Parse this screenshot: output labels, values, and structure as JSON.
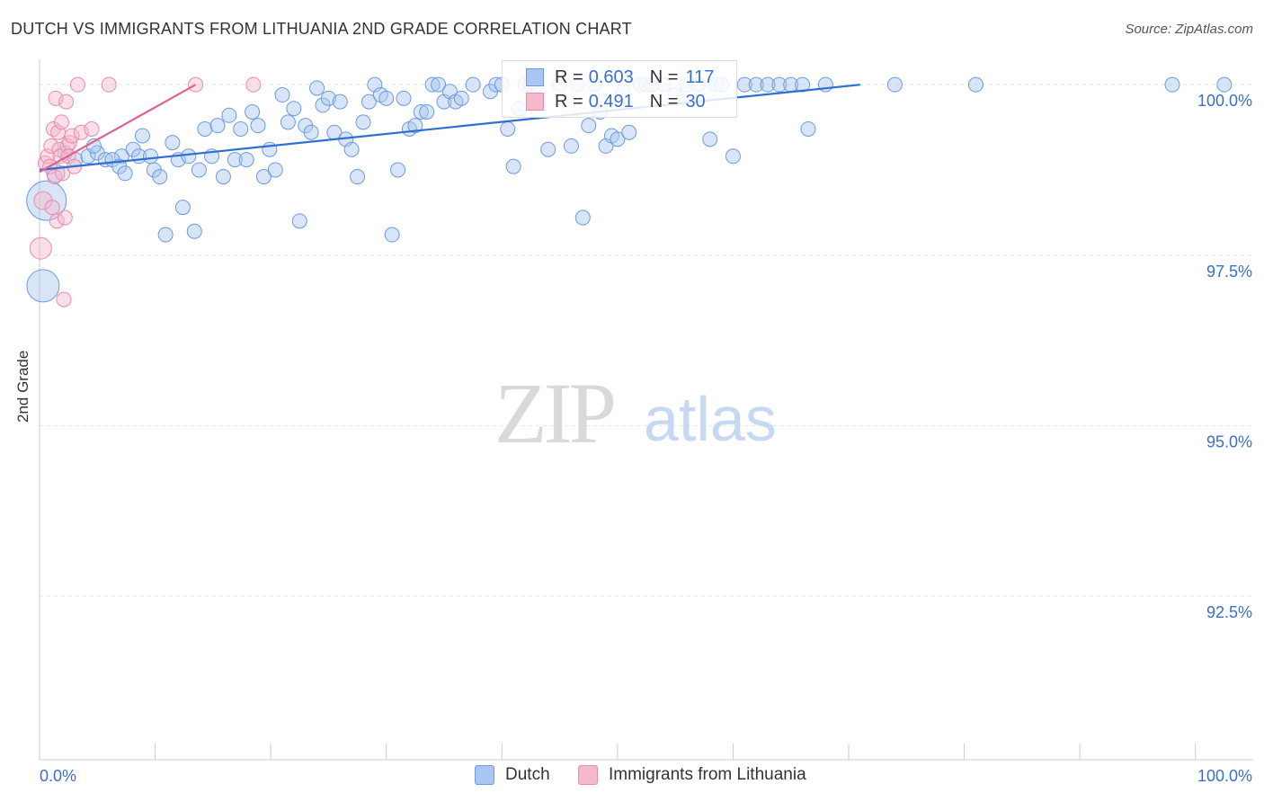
{
  "title": "DUTCH VS IMMIGRANTS FROM LITHUANIA 2ND GRADE CORRELATION CHART",
  "source": "Source: ZipAtlas.com",
  "watermark": {
    "zip": "ZIP",
    "atlas": "atlas"
  },
  "colors": {
    "dutch_fill": "#a9c6f0",
    "dutch_stroke": "#6b9be0",
    "dutch_line": "#2e6fd1",
    "lith_fill": "#f6b8cb",
    "lith_stroke": "#ea8aaa",
    "lith_line": "#e0608e",
    "tick_label": "#3b6fcc",
    "grid": "#e3e3e3"
  },
  "legend_stats": [
    {
      "r_label": "R =",
      "r_value": "0.603",
      "n_label": "N =",
      "n_value": "117"
    },
    {
      "r_label": "R =",
      "r_value": "0.491",
      "n_label": "N =",
      "n_value": "30"
    }
  ],
  "bottom_legend": {
    "dutch": "Dutch",
    "lith": "Immigrants from Lithuania"
  },
  "chart_data": {
    "type": "scatter",
    "title": "DUTCH VS IMMIGRANTS FROM LITHUANIA 2ND GRADE CORRELATION CHART",
    "xlabel": "",
    "ylabel": "2nd Grade",
    "xlim": [
      0,
      105
    ],
    "ylim": [
      90.1,
      100.2
    ],
    "x_tick_labels": [
      "0.0%",
      "100.0%"
    ],
    "y_tick_values": [
      92.5,
      95.0,
      97.5,
      100.0
    ],
    "y_tick_labels": [
      "92.5%",
      "95.0%",
      "97.5%",
      "100.0%"
    ],
    "series": [
      {
        "name": "Dutch",
        "r": 0.603,
        "n": 117,
        "trend": [
          [
            0,
            98.75
          ],
          [
            71,
            100.0
          ]
        ],
        "points": [
          [
            0.3,
            97.05,
            18
          ],
          [
            0.6,
            98.3,
            22
          ],
          [
            1.4,
            98.7,
            10
          ],
          [
            2.2,
            99.0,
            8
          ],
          [
            3.1,
            98.9,
            8
          ],
          [
            4.2,
            98.95,
            8
          ],
          [
            5.0,
            99.0,
            8
          ],
          [
            5.7,
            98.9,
            8
          ],
          [
            4.7,
            99.1,
            8
          ],
          [
            7.1,
            98.95,
            8
          ],
          [
            6.3,
            98.9,
            8
          ],
          [
            6.9,
            98.8,
            8
          ],
          [
            7.4,
            98.7,
            8
          ],
          [
            8.1,
            99.05,
            8
          ],
          [
            8.6,
            98.95,
            8
          ],
          [
            8.9,
            99.25,
            8
          ],
          [
            9.6,
            98.95,
            8
          ],
          [
            9.9,
            98.75,
            8
          ],
          [
            10.4,
            98.65,
            8
          ],
          [
            10.9,
            97.8,
            8
          ],
          [
            11.5,
            99.15,
            8
          ],
          [
            12.0,
            98.9,
            8
          ],
          [
            12.4,
            98.2,
            8
          ],
          [
            12.9,
            98.95,
            8
          ],
          [
            13.4,
            97.85,
            8
          ],
          [
            13.8,
            98.75,
            8
          ],
          [
            14.3,
            99.35,
            8
          ],
          [
            14.9,
            98.95,
            8
          ],
          [
            15.4,
            99.4,
            8
          ],
          [
            15.9,
            98.65,
            8
          ],
          [
            16.4,
            99.55,
            8
          ],
          [
            16.9,
            98.9,
            8
          ],
          [
            17.4,
            99.35,
            8
          ],
          [
            17.9,
            98.9,
            8
          ],
          [
            18.4,
            99.6,
            8
          ],
          [
            18.9,
            99.4,
            8
          ],
          [
            19.4,
            98.65,
            8
          ],
          [
            19.9,
            99.05,
            8
          ],
          [
            20.4,
            98.75,
            8
          ],
          [
            21.0,
            99.85,
            8
          ],
          [
            21.5,
            99.45,
            8
          ],
          [
            22.0,
            99.65,
            8
          ],
          [
            22.5,
            98.0,
            8
          ],
          [
            23.0,
            99.4,
            8
          ],
          [
            23.5,
            99.3,
            8
          ],
          [
            24.0,
            99.95,
            8
          ],
          [
            24.5,
            99.7,
            8
          ],
          [
            25.0,
            99.8,
            8
          ],
          [
            25.5,
            99.3,
            8
          ],
          [
            26.0,
            99.75,
            8
          ],
          [
            26.5,
            99.2,
            8
          ],
          [
            27.0,
            99.05,
            8
          ],
          [
            27.5,
            98.65,
            8
          ],
          [
            28.0,
            99.45,
            8
          ],
          [
            28.5,
            99.75,
            8
          ],
          [
            29.0,
            100.0,
            8
          ],
          [
            29.5,
            99.85,
            8
          ],
          [
            30.0,
            99.8,
            8
          ],
          [
            30.5,
            97.8,
            8
          ],
          [
            31.0,
            98.75,
            8
          ],
          [
            31.5,
            99.8,
            8
          ],
          [
            32.0,
            99.35,
            8
          ],
          [
            32.5,
            99.4,
            8
          ],
          [
            33.0,
            99.6,
            8
          ],
          [
            33.5,
            99.6,
            8
          ],
          [
            34.0,
            100.0,
            8
          ],
          [
            34.5,
            100.0,
            8
          ],
          [
            35.0,
            99.75,
            8
          ],
          [
            35.5,
            99.9,
            8
          ],
          [
            36.0,
            99.75,
            8
          ],
          [
            36.5,
            99.8,
            8
          ],
          [
            37.5,
            100.0,
            8
          ],
          [
            39.0,
            99.9,
            8
          ],
          [
            39.5,
            100.0,
            8
          ],
          [
            40.0,
            100.0,
            8
          ],
          [
            40.5,
            99.35,
            8
          ],
          [
            41.0,
            98.8,
            8
          ],
          [
            41.5,
            99.65,
            8
          ],
          [
            42.0,
            100.0,
            8
          ],
          [
            42.5,
            100.0,
            8
          ],
          [
            43.0,
            100.0,
            8
          ],
          [
            44.0,
            99.05,
            8
          ],
          [
            45.0,
            100.0,
            8
          ],
          [
            46.0,
            99.1,
            8
          ],
          [
            46.5,
            100.0,
            8
          ],
          [
            47.0,
            98.05,
            8
          ],
          [
            47.5,
            99.4,
            8
          ],
          [
            48.0,
            100.0,
            8
          ],
          [
            48.5,
            99.6,
            8
          ],
          [
            49.0,
            99.1,
            8
          ],
          [
            49.5,
            99.25,
            8
          ],
          [
            50.0,
            99.2,
            8
          ],
          [
            50.5,
            99.9,
            8
          ],
          [
            51.0,
            99.3,
            8
          ],
          [
            52.0,
            100.0,
            8
          ],
          [
            52.5,
            100.0,
            8
          ],
          [
            53.0,
            100.0,
            8
          ],
          [
            54.0,
            100.0,
            8
          ],
          [
            55.0,
            99.85,
            8
          ],
          [
            56.0,
            100.0,
            8
          ],
          [
            57.0,
            100.0,
            8
          ],
          [
            58.0,
            99.2,
            8
          ],
          [
            58.5,
            100.0,
            8
          ],
          [
            59.0,
            100.0,
            8
          ],
          [
            60.0,
            98.95,
            8
          ],
          [
            61.0,
            100.0,
            8
          ],
          [
            62.0,
            100.0,
            8
          ],
          [
            63.0,
            100.0,
            8
          ],
          [
            64.0,
            100.0,
            8
          ],
          [
            65.0,
            100.0,
            8
          ],
          [
            66.0,
            100.0,
            8
          ],
          [
            66.5,
            99.35,
            8
          ],
          [
            68.0,
            100.0,
            8
          ],
          [
            74.0,
            100.0,
            8
          ],
          [
            81.0,
            100.0,
            8
          ],
          [
            98.0,
            100.0,
            8
          ],
          [
            102.5,
            100.0,
            8
          ]
        ]
      },
      {
        "name": "Immigrants from Lithuania",
        "r": 0.491,
        "n": 30,
        "trend": [
          [
            0,
            98.72
          ],
          [
            13.5,
            100.0
          ]
        ],
        "points": [
          [
            0.1,
            97.6,
            12
          ],
          [
            0.3,
            98.3,
            10
          ],
          [
            0.5,
            98.85,
            8
          ],
          [
            0.7,
            98.95,
            8
          ],
          [
            0.9,
            98.8,
            8
          ],
          [
            1.0,
            99.1,
            8
          ],
          [
            1.1,
            98.2,
            8
          ],
          [
            1.2,
            99.35,
            8
          ],
          [
            1.3,
            98.65,
            8
          ],
          [
            1.4,
            99.8,
            8
          ],
          [
            1.5,
            98.0,
            8
          ],
          [
            1.6,
            99.3,
            8
          ],
          [
            1.7,
            99.05,
            8
          ],
          [
            1.8,
            98.95,
            8
          ],
          [
            1.9,
            99.45,
            8
          ],
          [
            2.0,
            98.7,
            8
          ],
          [
            2.1,
            96.85,
            8
          ],
          [
            2.2,
            98.05,
            8
          ],
          [
            2.3,
            99.75,
            8
          ],
          [
            2.4,
            99.1,
            8
          ],
          [
            2.5,
            98.95,
            8
          ],
          [
            2.6,
            99.15,
            8
          ],
          [
            2.8,
            99.25,
            8
          ],
          [
            3.0,
            98.8,
            8
          ],
          [
            3.3,
            100.0,
            8
          ],
          [
            3.6,
            99.3,
            8
          ],
          [
            4.5,
            99.35,
            8
          ],
          [
            6.0,
            100.0,
            8
          ],
          [
            13.5,
            100.0,
            8
          ],
          [
            18.5,
            100.0,
            8
          ]
        ]
      }
    ]
  }
}
